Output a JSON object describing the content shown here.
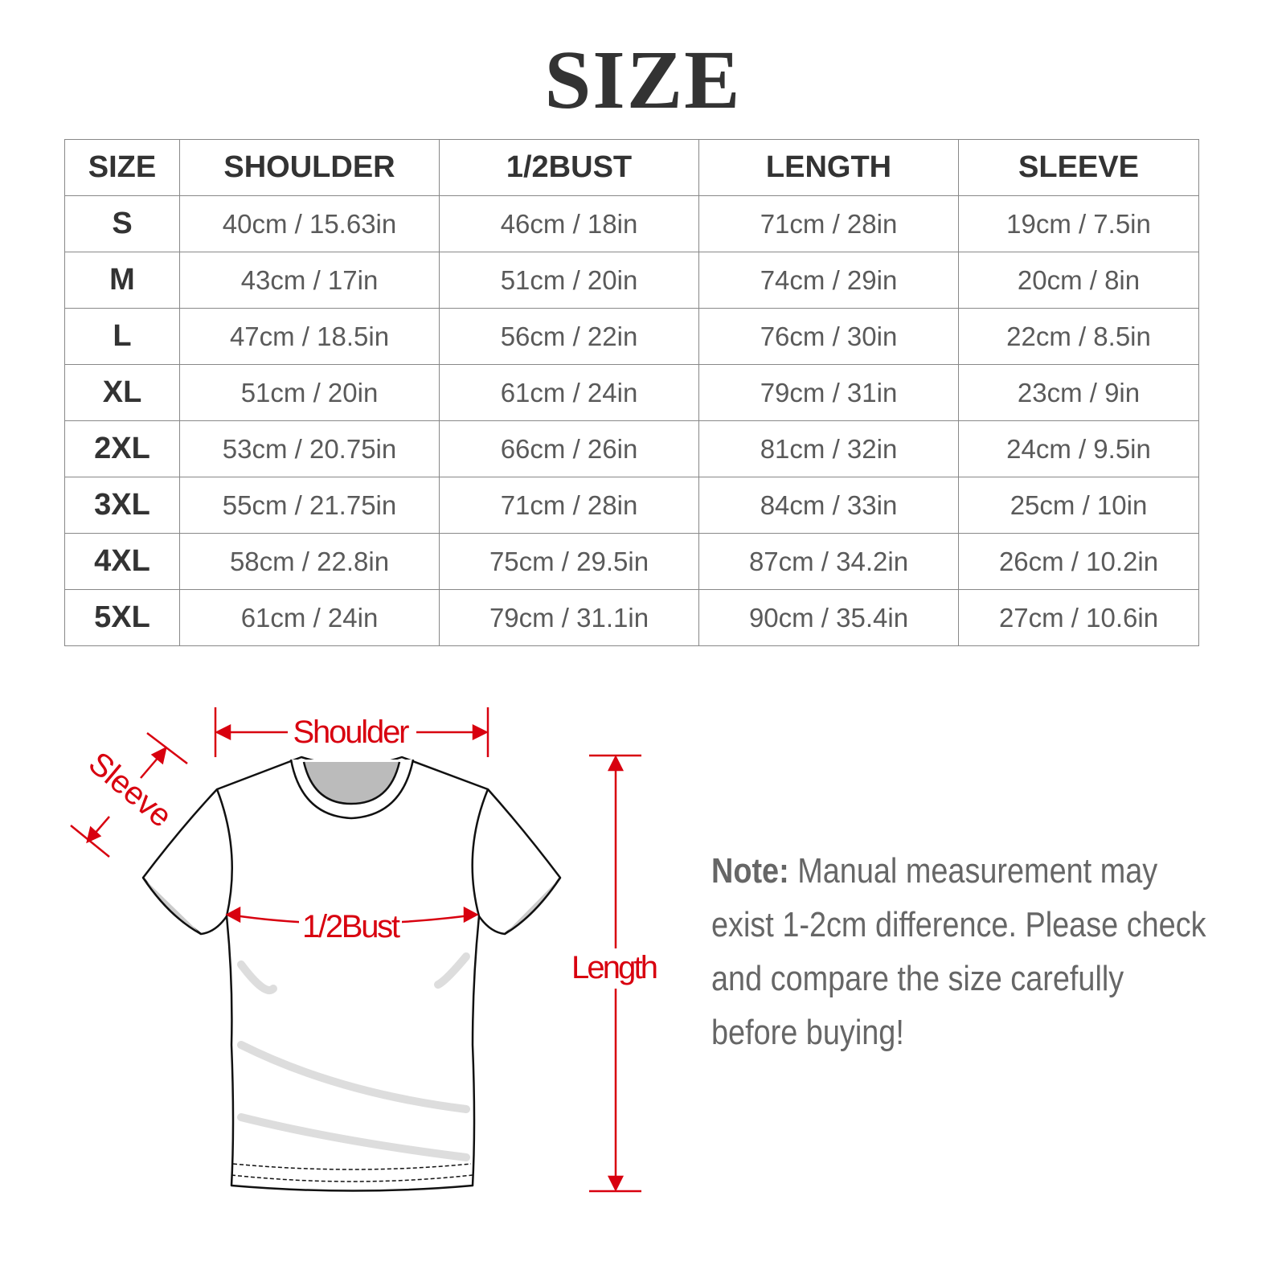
{
  "title": "SIZE",
  "table": {
    "headers": [
      "SIZE",
      "SHOULDER",
      "1/2BUST",
      "LENGTH",
      "SLEEVE"
    ],
    "rows": [
      [
        "S",
        "40cm / 15.63in",
        "46cm / 18in",
        "71cm / 28in",
        "19cm / 7.5in"
      ],
      [
        "M",
        "43cm / 17in",
        "51cm / 20in",
        "74cm / 29in",
        "20cm / 8in"
      ],
      [
        "L",
        "47cm / 18.5in",
        "56cm / 22in",
        "76cm / 30in",
        "22cm / 8.5in"
      ],
      [
        "XL",
        "51cm / 20in",
        "61cm / 24in",
        "79cm / 31in",
        "23cm / 9in"
      ],
      [
        "2XL",
        "53cm / 20.75in",
        "66cm / 26in",
        "81cm / 32in",
        "24cm / 9.5in"
      ],
      [
        "3XL",
        "55cm / 21.75in",
        "71cm / 28in",
        "84cm / 33in",
        "25cm / 10in"
      ],
      [
        "4XL",
        "58cm / 22.8in",
        "75cm / 29.5in",
        "87cm / 34.2in",
        "26cm / 10.2in"
      ],
      [
        "5XL",
        "61cm / 24in",
        "79cm / 31.1in",
        "90cm / 35.4in",
        "27cm / 10.6in"
      ]
    ]
  },
  "diagram": {
    "shoulder": "Shoulder",
    "sleeve": "Sleeve",
    "bust": "1/2Bust",
    "length": "Length",
    "accent_color": "#d8000f"
  },
  "note": {
    "label": "Note:",
    "text": " Manual measurement may exist 1-2cm difference. Please check and compare the size carefully before buying!"
  }
}
